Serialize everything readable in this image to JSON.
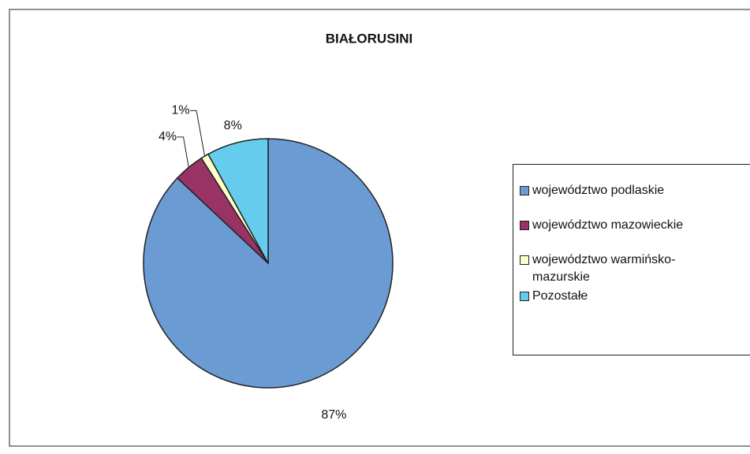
{
  "chart_data": {
    "type": "pie",
    "title": "BIAŁORUSINI",
    "categories": [
      "województwo podlaskie",
      "województwo mazowieckie",
      "województwo warmińsko-mazurskie",
      "Pozostałe"
    ],
    "values": [
      87,
      4,
      1,
      8
    ],
    "value_labels": [
      "87%",
      "4%",
      "1%",
      "8%"
    ],
    "colors": [
      "#6b9bd3",
      "#993366",
      "#ffffcc",
      "#66ccee"
    ],
    "legend": "right"
  }
}
